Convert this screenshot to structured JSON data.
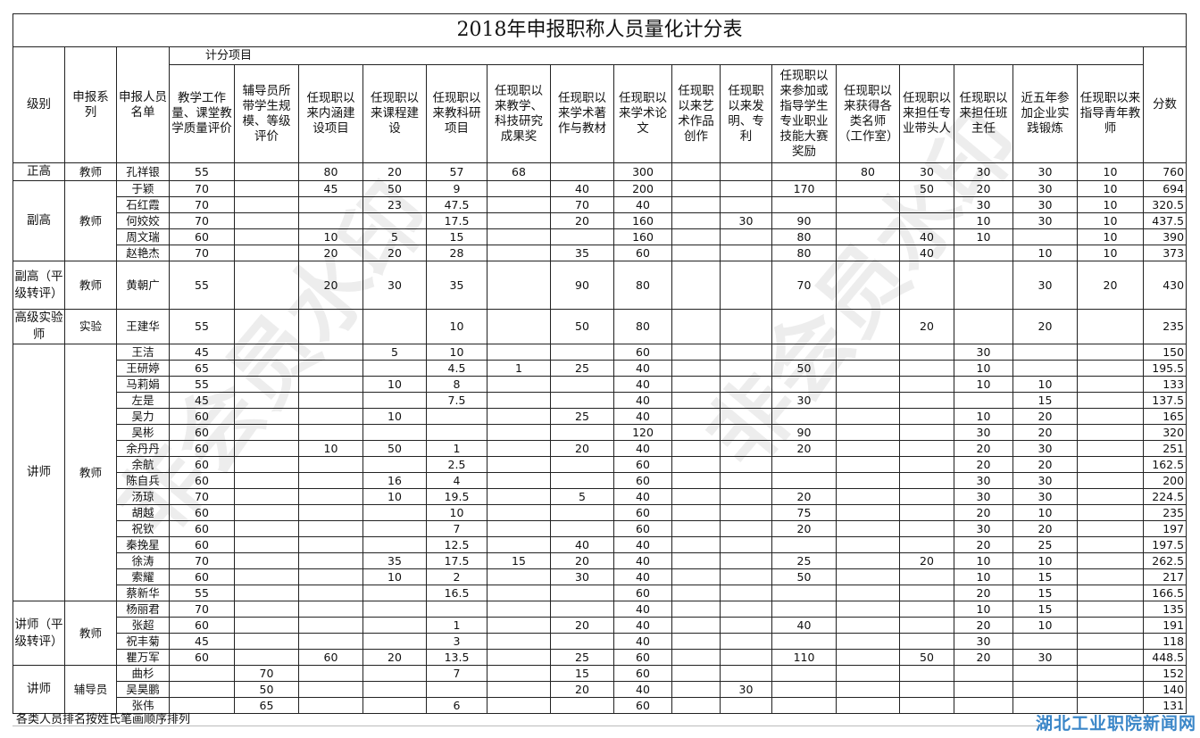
{
  "title": "2018年申报职称人员量化计分表",
  "group_header": "计分项目",
  "headers": {
    "level": "级别",
    "series": "申报系列",
    "name": "申报人员名单",
    "items": [
      "教学工作量、课堂教学质量评价",
      "辅导员所带学生规模、等级评价",
      "任现职以来内涵建设项目",
      "任现职以来课程建设",
      "任现职以来教科研项目",
      "任现职以来教学、科技研究成果奖",
      "任现职以来学术著作与教材",
      "任现职以来学术论文",
      "任现职以来艺术作品创作",
      "任现职以来发明、专利",
      "任现职以来参加或指导学生专业职业技能大赛奖励",
      "任现职以来获得各类名师（工作室）",
      "任现职以来担任专业带头人",
      "任现职以来担任班主任",
      "近五年参加企业实践锻炼",
      "任现职以来指导青年教师"
    ],
    "total": "分数"
  },
  "groups": [
    {
      "level": "正高",
      "series": "教师",
      "people": [
        {
          "name": "孔祥银",
          "scores": [
            "55",
            "",
            "80",
            "20",
            "57",
            "68",
            "",
            "300",
            "",
            "",
            "",
            "80",
            "30",
            "30",
            "30",
            "10"
          ],
          "total": "760"
        }
      ]
    },
    {
      "level": "副高",
      "series": "教师",
      "people": [
        {
          "name": "于颖",
          "scores": [
            "70",
            "",
            "45",
            "50",
            "9",
            "",
            "40",
            "200",
            "",
            "",
            "170",
            "",
            "50",
            "20",
            "30",
            "10"
          ],
          "total": "694"
        },
        {
          "name": "石红霞",
          "scores": [
            "70",
            "",
            "",
            "23",
            "47.5",
            "",
            "70",
            "40",
            "",
            "",
            "",
            "",
            "",
            "30",
            "30",
            "10"
          ],
          "total": "320.5"
        },
        {
          "name": "何姣姣",
          "scores": [
            "70",
            "",
            "",
            "",
            "17.5",
            "",
            "20",
            "160",
            "",
            "30",
            "90",
            "",
            "",
            "10",
            "30",
            "10"
          ],
          "total": "437.5"
        },
        {
          "name": "周文瑞",
          "scores": [
            "60",
            "",
            "10",
            "5",
            "15",
            "",
            "",
            "160",
            "",
            "",
            "80",
            "",
            "40",
            "10",
            "",
            "10"
          ],
          "total": "390"
        },
        {
          "name": "赵艳杰",
          "scores": [
            "70",
            "",
            "20",
            "20",
            "28",
            "",
            "35",
            "60",
            "",
            "",
            "80",
            "",
            "40",
            "",
            "10",
            "10"
          ],
          "total": "373"
        }
      ]
    },
    {
      "level": "副高（平级转评）",
      "series": "教师",
      "people": [
        {
          "name": "黄朝广",
          "scores": [
            "55",
            "",
            "20",
            "30",
            "35",
            "",
            "90",
            "80",
            "",
            "",
            "70",
            "",
            "",
            "",
            "30",
            "20"
          ],
          "total": "430"
        }
      ]
    },
    {
      "level": "高级实验师",
      "series": "实验",
      "people": [
        {
          "name": "王建华",
          "scores": [
            "55",
            "",
            "",
            "",
            "10",
            "",
            "50",
            "80",
            "",
            "",
            "",
            "",
            "20",
            "",
            "20",
            ""
          ],
          "total": "235"
        }
      ]
    },
    {
      "level": "讲师",
      "series": "教师",
      "people": [
        {
          "name": "王洁",
          "scores": [
            "45",
            "",
            "",
            "5",
            "10",
            "",
            "",
            "60",
            "",
            "",
            "",
            "",
            "",
            "30",
            "",
            ""
          ],
          "total": "150"
        },
        {
          "name": "王研婷",
          "scores": [
            "65",
            "",
            "",
            "",
            "4.5",
            "1",
            "25",
            "40",
            "",
            "",
            "50",
            "",
            "",
            "10",
            "",
            ""
          ],
          "total": "195.5"
        },
        {
          "name": "马莉娟",
          "scores": [
            "55",
            "",
            "",
            "10",
            "8",
            "",
            "",
            "40",
            "",
            "",
            "",
            "",
            "",
            "10",
            "10",
            ""
          ],
          "total": "133"
        },
        {
          "name": "左是",
          "scores": [
            "45",
            "",
            "",
            "",
            "7.5",
            "",
            "",
            "40",
            "",
            "",
            "30",
            "",
            "",
            "",
            "15",
            ""
          ],
          "total": "137.5"
        },
        {
          "name": "吴力",
          "scores": [
            "60",
            "",
            "",
            "10",
            "",
            "",
            "25",
            "40",
            "",
            "",
            "",
            "",
            "",
            "10",
            "20",
            ""
          ],
          "total": "165"
        },
        {
          "name": "吴彬",
          "scores": [
            "60",
            "",
            "",
            "",
            "",
            "",
            "",
            "120",
            "",
            "",
            "90",
            "",
            "",
            "30",
            "20",
            ""
          ],
          "total": "320"
        },
        {
          "name": "余丹丹",
          "scores": [
            "60",
            "",
            "10",
            "50",
            "1",
            "",
            "20",
            "40",
            "",
            "",
            "20",
            "",
            "",
            "20",
            "30",
            ""
          ],
          "total": "251"
        },
        {
          "name": "余航",
          "scores": [
            "60",
            "",
            "",
            "",
            "2.5",
            "",
            "",
            "60",
            "",
            "",
            "",
            "",
            "",
            "20",
            "20",
            ""
          ],
          "total": "162.5"
        },
        {
          "name": "陈自兵",
          "scores": [
            "60",
            "",
            "",
            "16",
            "4",
            "",
            "",
            "60",
            "",
            "",
            "",
            "",
            "",
            "30",
            "30",
            ""
          ],
          "total": "200"
        },
        {
          "name": "汤琼",
          "scores": [
            "70",
            "",
            "",
            "10",
            "19.5",
            "",
            "5",
            "40",
            "",
            "",
            "20",
            "",
            "",
            "30",
            "30",
            ""
          ],
          "total": "224.5"
        },
        {
          "name": "胡越",
          "scores": [
            "60",
            "",
            "",
            "",
            "10",
            "",
            "",
            "60",
            "",
            "",
            "75",
            "",
            "",
            "20",
            "10",
            ""
          ],
          "total": "235"
        },
        {
          "name": "祝钦",
          "scores": [
            "60",
            "",
            "",
            "",
            "7",
            "",
            "",
            "60",
            "",
            "",
            "20",
            "",
            "",
            "30",
            "20",
            ""
          ],
          "total": "197"
        },
        {
          "name": "秦挽星",
          "scores": [
            "60",
            "",
            "",
            "",
            "12.5",
            "",
            "40",
            "40",
            "",
            "",
            "",
            "",
            "",
            "20",
            "25",
            ""
          ],
          "total": "197.5"
        },
        {
          "name": "徐涛",
          "scores": [
            "70",
            "",
            "",
            "35",
            "17.5",
            "15",
            "20",
            "40",
            "",
            "",
            "25",
            "",
            "20",
            "10",
            "10",
            ""
          ],
          "total": "262.5"
        },
        {
          "name": "索耀",
          "scores": [
            "60",
            "",
            "",
            "10",
            "2",
            "",
            "30",
            "40",
            "",
            "",
            "50",
            "",
            "",
            "10",
            "15",
            ""
          ],
          "total": "217"
        },
        {
          "name": "蔡新华",
          "scores": [
            "55",
            "",
            "",
            "",
            "16.5",
            "",
            "",
            "60",
            "",
            "",
            "",
            "",
            "",
            "20",
            "15",
            ""
          ],
          "total": "166.5"
        }
      ]
    },
    {
      "level": "讲师（平级转评）",
      "series": "教师",
      "people": [
        {
          "name": "杨丽君",
          "scores": [
            "70",
            "",
            "",
            "",
            "",
            "",
            "",
            "40",
            "",
            "",
            "",
            "",
            "",
            "10",
            "15",
            ""
          ],
          "total": "135"
        },
        {
          "name": "张超",
          "scores": [
            "60",
            "",
            "",
            "",
            "1",
            "",
            "20",
            "40",
            "",
            "",
            "40",
            "",
            "",
            "20",
            "10",
            ""
          ],
          "total": "191"
        },
        {
          "name": "祝丰菊",
          "scores": [
            "45",
            "",
            "",
            "",
            "3",
            "",
            "",
            "40",
            "",
            "",
            "",
            "",
            "",
            "30",
            "",
            ""
          ],
          "total": "118"
        },
        {
          "name": "瞿万军",
          "scores": [
            "60",
            "",
            "60",
            "20",
            "13.5",
            "",
            "25",
            "60",
            "",
            "",
            "110",
            "",
            "50",
            "20",
            "30",
            ""
          ],
          "total": "448.5"
        }
      ]
    },
    {
      "level": "讲师",
      "series": "辅导员",
      "people": [
        {
          "name": "曲杉",
          "scores": [
            "",
            "70",
            "",
            "",
            "7",
            "",
            "15",
            "60",
            "",
            "",
            "",
            "",
            "",
            "",
            "",
            ""
          ],
          "total": "152"
        },
        {
          "name": "吴昊鹏",
          "scores": [
            "",
            "50",
            "",
            "",
            "",
            "",
            "20",
            "40",
            "",
            "30",
            "",
            "",
            "",
            "",
            "",
            ""
          ],
          "total": "140"
        },
        {
          "name": "张伟",
          "scores": [
            "",
            "65",
            "",
            "",
            "6",
            "",
            "",
            "60",
            "",
            "",
            "",
            "",
            "",
            "",
            "",
            ""
          ],
          "total": "131"
        }
      ]
    }
  ],
  "footer_note": "各类人员排名按姓氏笔画顺序排列",
  "watermark": "非会员水印",
  "logo": "湖北工业职院新闻网",
  "colors": {
    "border": "#222222",
    "logo": "#3a86c8"
  }
}
